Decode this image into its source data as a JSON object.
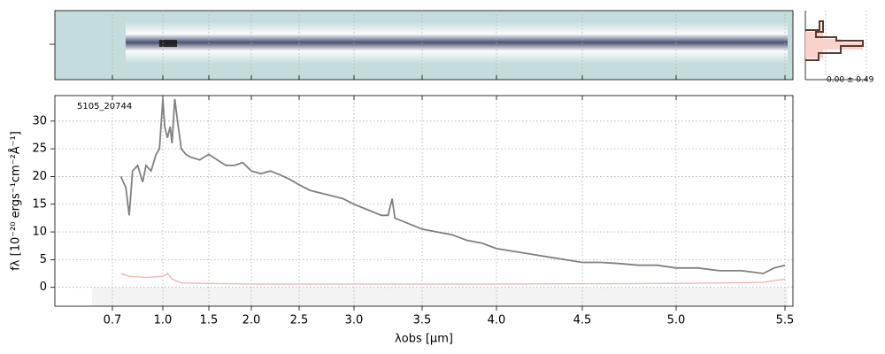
{
  "chart_data": {
    "type": "line",
    "annotation": "5105_20744",
    "profile_label": "0.00 ± 0.49",
    "xlabel": "λobs [μm]",
    "ylabel": "fλ [10⁻²⁰ ergs⁻¹cm⁻²Å⁻¹]",
    "xlim": [
      0.36,
      5.54
    ],
    "xticks": [
      0.7,
      {
        "value": 1,
        "label": "1.0"
      },
      1.5,
      {
        "value": 2,
        "label": "2.0"
      },
      2.5,
      {
        "value": 3,
        "label": "3.0"
      },
      3.5,
      {
        "value": 4,
        "label": "4.0"
      },
      4.5,
      {
        "value": 5,
        "label": "5.0"
      },
      5.5
    ],
    "ylim": [
      -3.4,
      34.6
    ],
    "yticks": [
      0,
      5,
      10,
      15,
      20,
      25,
      30
    ],
    "grid": true,
    "series": [
      {
        "color": "#808080",
        "x": [
          0.75,
          0.78,
          0.8,
          0.82,
          0.85,
          0.88,
          0.9,
          0.93,
          0.96,
          0.98,
          1.0,
          1.02,
          1.05,
          1.08,
          1.1,
          1.13,
          1.16,
          1.2,
          1.25,
          1.3,
          1.4,
          1.5,
          1.6,
          1.7,
          1.8,
          1.9,
          2.0,
          2.1,
          2.2,
          2.3,
          2.4,
          2.5,
          2.6,
          2.7,
          2.8,
          2.9,
          3.0,
          3.1,
          3.15,
          3.2,
          3.25,
          3.28,
          3.3,
          3.4,
          3.5,
          3.6,
          3.7,
          3.8,
          3.9,
          4.0,
          4.1,
          4.2,
          4.3,
          4.4,
          4.5,
          4.6,
          4.7,
          4.8,
          4.9,
          5.0,
          5.1,
          5.2,
          5.3,
          5.4,
          5.45,
          5.5
        ],
        "values": [
          20,
          18,
          13,
          21,
          22,
          19,
          22,
          21,
          24,
          25,
          34,
          29,
          27,
          29,
          26,
          34,
          30,
          25,
          24,
          23.5,
          23,
          24,
          23,
          22,
          22,
          22.5,
          21,
          20.5,
          21,
          20.3,
          19.5,
          18.5,
          17.5,
          17,
          16.5,
          16,
          15,
          14,
          13.5,
          13,
          13,
          16,
          12.5,
          11.5,
          10.5,
          10,
          9.5,
          8.5,
          8,
          7,
          6.5,
          6,
          5.5,
          5,
          4.5,
          4.5,
          4.3,
          4,
          4,
          3.5,
          3.5,
          3,
          3,
          2.5,
          3.5,
          4
        ]
      },
      {
        "color": "#f4b6b0",
        "x": [
          0.75,
          0.8,
          0.9,
          1.0,
          1.05,
          1.1,
          1.2,
          1.5,
          2.0,
          3.0,
          4.0,
          5.0,
          5.4,
          5.5
        ],
        "values": [
          2.5,
          2,
          1.8,
          2,
          2.5,
          1.5,
          0.8,
          0.7,
          0.6,
          0.6,
          0.6,
          0.7,
          0.9,
          1.5
        ]
      }
    ]
  }
}
